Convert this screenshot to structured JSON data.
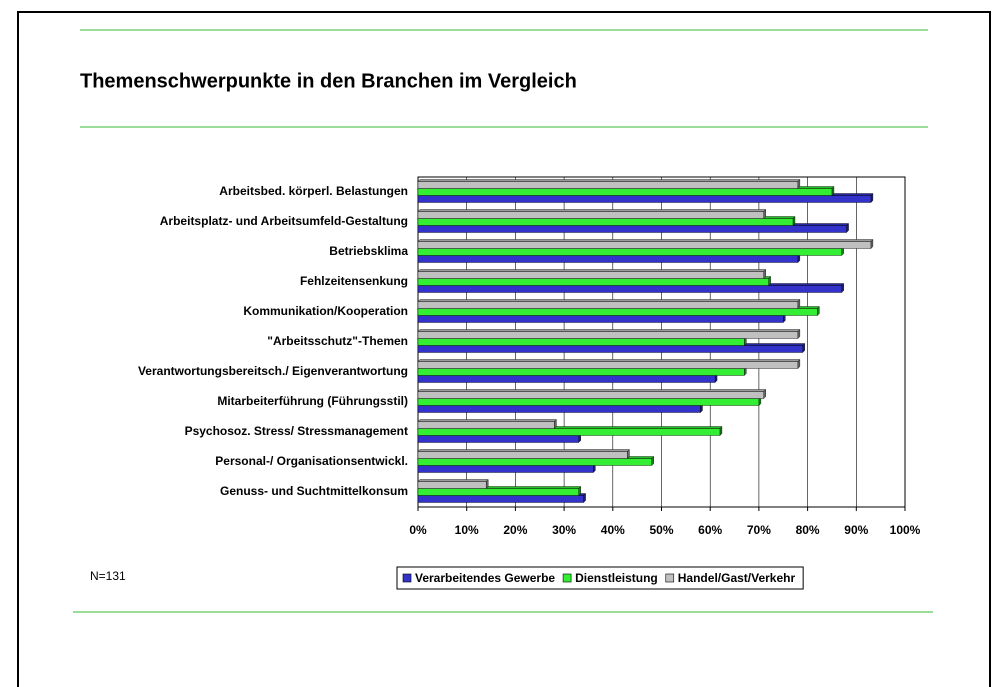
{
  "chart_data": {
    "type": "hbar",
    "title": "Themenschwerpunkte in den Branchen im Vergleich",
    "annotation": "N=131",
    "categories": [
      "Arbeitsbed. körperl. Belastungen",
      "Arbeitsplatz- und Arbeitsumfeld-Gestaltung",
      "Betriebsklima",
      "Fehlzeitensenkung",
      "Kommunikation/Kooperation",
      "\"Arbeitsschutz\"-Themen",
      "Verantwortungsbereitsch./ Eigenverantwortung",
      "Mitarbeiterführung (Führungsstil)",
      "Psychosoz. Stress/ Stressmanagement",
      "Personal-/ Organisationsentwickl.",
      "Genuss- und Suchtmittelkonsum"
    ],
    "series": [
      {
        "name": "Verarbeitendes Gewerbe",
        "color": "#3333cc",
        "values": [
          93,
          88,
          78,
          87,
          75,
          79,
          61,
          58,
          33,
          36,
          34
        ]
      },
      {
        "name": "Dienstleistung",
        "color": "#33ee33",
        "values": [
          85,
          77,
          87,
          72,
          82,
          67,
          67,
          70,
          62,
          48,
          33
        ]
      },
      {
        "name": "Handel/Gast/Verkehr",
        "color": "#c0c0c0",
        "values": [
          78,
          71,
          93,
          71,
          78,
          78,
          78,
          71,
          28,
          43,
          14
        ]
      }
    ],
    "xlim": [
      0,
      100
    ],
    "xticks": [
      {
        "value": 0,
        "label": "0%"
      },
      {
        "value": 10,
        "label": "10%"
      },
      {
        "value": 20,
        "label": "20%"
      },
      {
        "value": 30,
        "label": "30%"
      },
      {
        "value": 40,
        "label": "40%"
      },
      {
        "value": 50,
        "label": "50%"
      },
      {
        "value": 60,
        "label": "60%"
      },
      {
        "value": 70,
        "label": "70%"
      },
      {
        "value": 80,
        "label": "80%"
      },
      {
        "value": 90,
        "label": "90%"
      },
      {
        "value": 100,
        "label": "100%"
      }
    ],
    "grid": true,
    "legend": "bottom"
  }
}
